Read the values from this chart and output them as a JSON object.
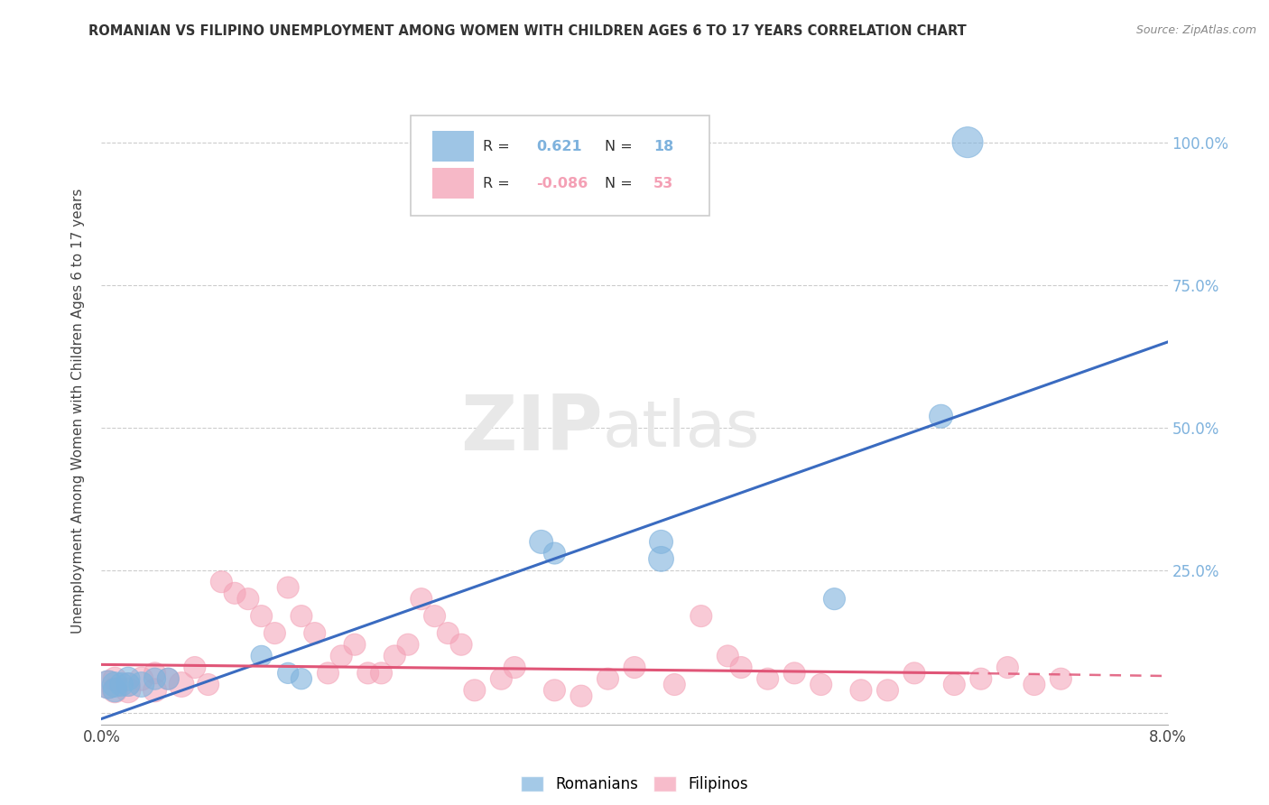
{
  "title": "ROMANIAN VS FILIPINO UNEMPLOYMENT AMONG WOMEN WITH CHILDREN AGES 6 TO 17 YEARS CORRELATION CHART",
  "source": "Source: ZipAtlas.com",
  "ylabel": "Unemployment Among Women with Children Ages 6 to 17 years",
  "xlim": [
    0.0,
    0.08
  ],
  "ylim": [
    -0.02,
    1.08
  ],
  "xticks": [
    0.0,
    0.02,
    0.04,
    0.06,
    0.08
  ],
  "xticklabels": [
    "0.0%",
    "",
    "",
    "",
    "8.0%"
  ],
  "yticks": [
    0.0,
    0.25,
    0.5,
    0.75,
    1.0
  ],
  "yticklabels_right": [
    "",
    "25.0%",
    "50.0%",
    "75.0%",
    "100.0%"
  ],
  "blue_color": "#7EB2DD",
  "pink_color": "#F4A0B5",
  "blue_line_color": "#3A6BC0",
  "pink_line_color": "#E05577",
  "romanians_x": [
    0.0005,
    0.001,
    0.001,
    0.0015,
    0.002,
    0.002,
    0.003,
    0.004,
    0.005,
    0.012,
    0.014,
    0.015,
    0.033,
    0.034,
    0.042,
    0.042,
    0.055,
    0.063,
    0.065
  ],
  "romanians_y": [
    0.05,
    0.05,
    0.04,
    0.05,
    0.06,
    0.05,
    0.05,
    0.06,
    0.06,
    0.1,
    0.07,
    0.06,
    0.3,
    0.28,
    0.3,
    0.27,
    0.2,
    0.52,
    1.0
  ],
  "romanians_size": [
    500,
    400,
    350,
    350,
    350,
    350,
    400,
    300,
    300,
    280,
    280,
    280,
    350,
    300,
    350,
    400,
    300,
    350,
    600
  ],
  "filipinos_x": [
    0.0005,
    0.001,
    0.001,
    0.002,
    0.002,
    0.003,
    0.004,
    0.004,
    0.005,
    0.006,
    0.007,
    0.008,
    0.009,
    0.01,
    0.011,
    0.012,
    0.013,
    0.014,
    0.015,
    0.016,
    0.017,
    0.018,
    0.019,
    0.02,
    0.021,
    0.022,
    0.023,
    0.024,
    0.025,
    0.026,
    0.027,
    0.028,
    0.03,
    0.031,
    0.034,
    0.036,
    0.038,
    0.04,
    0.043,
    0.045,
    0.047,
    0.048,
    0.05,
    0.052,
    0.054,
    0.057,
    0.059,
    0.061,
    0.064,
    0.066,
    0.068,
    0.07,
    0.072
  ],
  "filipinos_y": [
    0.05,
    0.04,
    0.06,
    0.05,
    0.04,
    0.06,
    0.07,
    0.04,
    0.06,
    0.05,
    0.08,
    0.05,
    0.23,
    0.21,
    0.2,
    0.17,
    0.14,
    0.22,
    0.17,
    0.14,
    0.07,
    0.1,
    0.12,
    0.07,
    0.07,
    0.1,
    0.12,
    0.2,
    0.17,
    0.14,
    0.12,
    0.04,
    0.06,
    0.08,
    0.04,
    0.03,
    0.06,
    0.08,
    0.05,
    0.17,
    0.1,
    0.08,
    0.06,
    0.07,
    0.05,
    0.04,
    0.04,
    0.07,
    0.05,
    0.06,
    0.08,
    0.05,
    0.06
  ],
  "filipinos_size": [
    500,
    400,
    350,
    350,
    400,
    350,
    300,
    350,
    300,
    400,
    300,
    300,
    300,
    300,
    300,
    300,
    300,
    300,
    300,
    300,
    300,
    300,
    300,
    300,
    300,
    300,
    300,
    300,
    300,
    300,
    300,
    300,
    300,
    300,
    300,
    300,
    300,
    300,
    300,
    300,
    300,
    300,
    300,
    300,
    300,
    300,
    300,
    300,
    300,
    300,
    300,
    300,
    300
  ],
  "rom_line_x0": 0.0,
  "rom_line_y0": -0.01,
  "rom_line_x1": 0.08,
  "rom_line_y1": 0.65,
  "fil_line_x0": 0.0,
  "fil_line_y0": 0.085,
  "fil_line_x1": 0.065,
  "fil_line_y1": 0.07,
  "fil_line_dash_x0": 0.065,
  "fil_line_dash_y0": 0.07,
  "fil_line_dash_x1": 0.08,
  "fil_line_dash_y1": 0.065,
  "watermark_zip": "ZIP",
  "watermark_atlas": "atlas"
}
